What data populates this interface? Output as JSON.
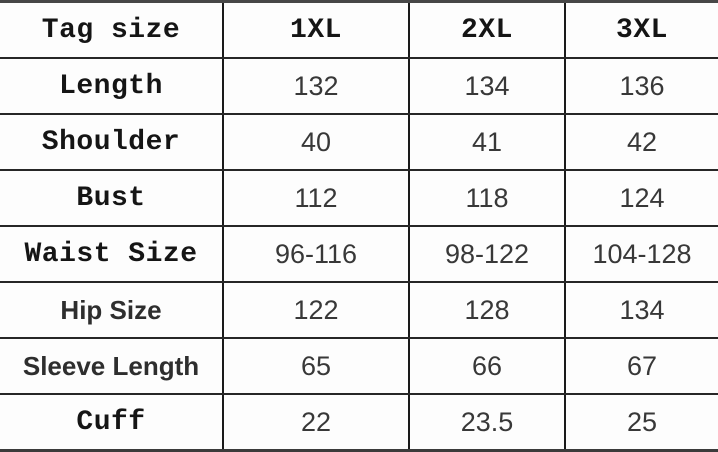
{
  "chart_data": {
    "type": "table",
    "header": [
      "Tag size",
      "1XL",
      "2XL",
      "3XL"
    ],
    "rows": [
      [
        "Length",
        "132",
        "134",
        "136"
      ],
      [
        "Shoulder",
        "40",
        "41",
        "42"
      ],
      [
        "Bust",
        "112",
        "118",
        "124"
      ],
      [
        "Waist Size",
        "96-116",
        "98-122",
        "104-128"
      ],
      [
        "Hip Size",
        "122",
        "128",
        "134"
      ],
      [
        "Sleeve Length",
        "65",
        "66",
        "67"
      ],
      [
        "Cuff",
        "22",
        "23.5",
        "25"
      ]
    ],
    "layout": {
      "grid_lines": "on",
      "columns": 4,
      "rows_total": 8
    }
  },
  "colors": {
    "background": "#fdfdfd",
    "grid_line": "#272727",
    "frame_line": "#474747",
    "label_text": "#151515",
    "value_text": "#383838"
  }
}
